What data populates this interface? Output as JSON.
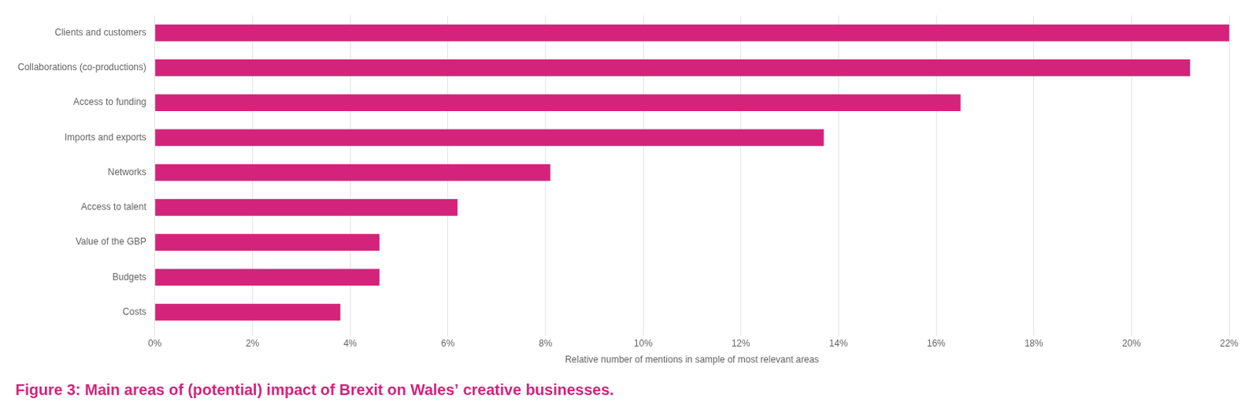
{
  "chart_data": {
    "type": "bar",
    "orientation": "horizontal",
    "title": "Figure 3: Main areas of (potential) impact of Brexit on Wales’ creative businesses.",
    "xlabel": "Relative number of mentions in sample of most relevant areas",
    "categories": [
      "Costs",
      "Budgets",
      "Value of the GBP",
      "Access to talent",
      "Networks",
      "Imports and exports",
      "Access to funding",
      "Collaborations (co-productions)",
      "Clients and customers"
    ],
    "values": [
      3.8,
      4.6,
      4.6,
      6.2,
      8.1,
      13.7,
      16.5,
      21.2,
      22.0
    ],
    "color": "#d4237a",
    "xlim": [
      0,
      22
    ],
    "xticks": [
      {
        "value": 0,
        "label": "0%"
      },
      {
        "value": 2,
        "label": "2%"
      },
      {
        "value": 4,
        "label": "4%"
      },
      {
        "value": 6,
        "label": "6%"
      },
      {
        "value": 8,
        "label": "8%"
      },
      {
        "value": 10,
        "label": "10%"
      },
      {
        "value": 12,
        "label": "12%"
      },
      {
        "value": 14,
        "label": "14%"
      },
      {
        "value": 16,
        "label": "16%"
      },
      {
        "value": 18,
        "label": "18%"
      },
      {
        "value": 20,
        "label": "20%"
      },
      {
        "value": 22,
        "label": "22%"
      }
    ],
    "grid": true
  }
}
